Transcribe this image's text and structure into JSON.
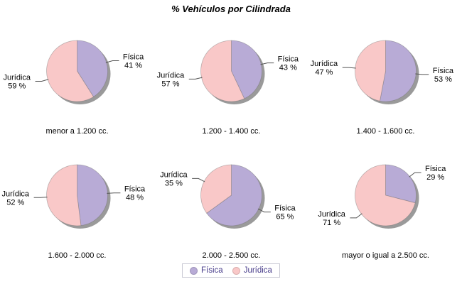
{
  "title": "% Vehículos por Cilindrada",
  "legend": {
    "items": [
      {
        "label": "Física",
        "color": "#b8abd6"
      },
      {
        "label": "Jurídica",
        "color": "#f9c8c8"
      }
    ]
  },
  "colors": {
    "background": "#ffffff",
    "shadow": "#9a9a9a",
    "slice_outline": "rgba(110,110,110,0.45)",
    "leader_line": "#555555",
    "label_text": "#000000",
    "title_text": "#000000",
    "caption_text": "#000000",
    "legend_text": "#483d8b",
    "legend_border": "#c9c9d4"
  },
  "label_format": {
    "value_suffix": " %"
  },
  "chart_data": [
    {
      "type": "pie",
      "category": "menor a 1.200 cc.",
      "labels": [
        "Física",
        "Jurídica"
      ],
      "values": [
        41,
        59
      ]
    },
    {
      "type": "pie",
      "category": "1.200 - 1.400 cc.",
      "labels": [
        "Física",
        "Jurídica"
      ],
      "values": [
        43,
        57
      ]
    },
    {
      "type": "pie",
      "category": "1.400 - 1.600 cc.",
      "labels": [
        "Física",
        "Jurídica"
      ],
      "values": [
        53,
        47
      ]
    },
    {
      "type": "pie",
      "category": "1.600 - 2.000 cc.",
      "labels": [
        "Física",
        "Jurídica"
      ],
      "values": [
        48,
        52
      ]
    },
    {
      "type": "pie",
      "category": "2.000 - 2.500 cc.",
      "labels": [
        "Física",
        "Jurídica"
      ],
      "values": [
        65,
        35
      ]
    },
    {
      "type": "pie",
      "category": "mayor o igual a 2.500 cc.",
      "labels": [
        "Física",
        "Jurídica"
      ],
      "values": [
        29,
        71
      ]
    }
  ]
}
